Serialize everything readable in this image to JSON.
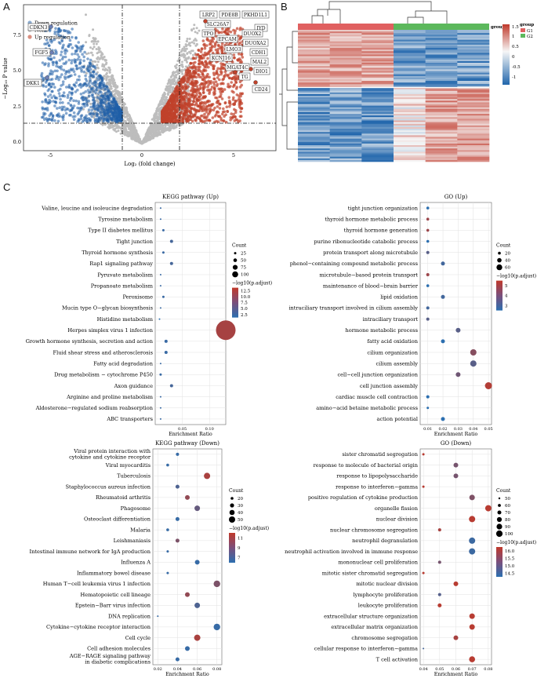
{
  "panel_letters": {
    "a": "A",
    "b": "B",
    "c": "C"
  },
  "colors": {
    "down": "#1f5fa8",
    "up": "#c0422b",
    "ns": "#bdbdbd",
    "low": "#2c6fb0",
    "high": "#c0392b",
    "hm_g1": "#e06060",
    "hm_g2": "#5cb85c"
  },
  "volcano": {
    "xlabel": "Log₂ (fold change)",
    "ylabel": "−Log₁₀ P value",
    "legend": [
      "Down regulation",
      "None",
      "Up regulation"
    ],
    "x_ticks": [
      "-5",
      "0",
      "5"
    ],
    "y_ticks": [
      "0.0",
      "2.5",
      "5.0",
      "7.5"
    ],
    "labels_left": [
      "CDKN3",
      "FGF5",
      "DKK1"
    ],
    "labels_right": [
      "LRP2",
      "PDE8B",
      "PKHD1L1",
      "SLC26A7",
      "IYD",
      "TPO",
      "DUOX2",
      "EPCAM",
      "DUOXA2",
      "LMO3",
      "CDH1",
      "KCNJ16",
      "MAL2",
      "MGAT4C",
      "DIO1",
      "TG",
      "CD24"
    ]
  },
  "heatmap": {
    "legend_values": [
      "1.5",
      "1",
      "0.5",
      "0",
      "-0.5",
      "-1"
    ],
    "group_title": "group",
    "groups": [
      "G1",
      "G2"
    ]
  },
  "chart_data": [
    {
      "type": "scatter",
      "title": "KEGG pathway (Up)",
      "xlabel": "Enrichment Ratio",
      "x_ticks": [
        "0.05",
        "0.10"
      ],
      "terms": [
        "Valine, leucine and isoleucine degradation",
        "Tyrosine metabolism",
        "Type II diabetes mellitus",
        "Tight junction",
        "Thyroid hormone synthesis",
        "Rap1 signaling pathway",
        "Pyruvate metabolism",
        "Propanoate metabolism",
        "Peroxisome",
        "Mucin type O−glycan biosynthesis",
        "Histidine metabolism",
        "Herpes simplex virus 1 infection",
        "Growth hormone synthesis, secretion and action",
        "Fluid shear stress and atherosclerosis",
        "Fatty acid degradation",
        "Drug metabolism − cytochrome P450",
        "Axon guidance",
        "Arginine and proline metabolism",
        "Aldosterone−regulated sodium reabsorption",
        "ABC transporters"
      ],
      "count_title": "Count",
      "count_legend": [
        "25",
        "50",
        "75",
        "100"
      ],
      "color_title": "−log10(p.adjust)",
      "color_ticks": [
        "12.5",
        "10.0",
        "7.5",
        "5.0",
        "2.5"
      ]
    },
    {
      "type": "scatter",
      "title": "GO (Up)",
      "xlabel": "Enrichment Ratio",
      "x_ticks": [
        "0.01",
        "0.02",
        "0.03",
        "0.04",
        "0.05"
      ],
      "terms": [
        "tight junction organization",
        "thyroid hormone metabolic process",
        "thyroid hormone generation",
        "purine ribonucleotide catabolic process",
        "protein transport along microtubule",
        "phenol−containing compound metabolic process",
        "microtubule−based protein transport",
        "maintenance of blood−brain barrier",
        "lipid oxidation",
        "intraciliary transport involved in cilium assembly",
        "intraciliary transport",
        "hormone metabolic process",
        "fatty acid oxidation",
        "cilium organization",
        "cilium assembly",
        "cell−cell junction organization",
        "cell junction assembly",
        "cardiac muscle cell contraction",
        "amino−acid betaine metabolic process",
        "action potential"
      ],
      "count_title": "Count",
      "count_legend": [
        "20",
        "40",
        "60"
      ],
      "color_title": "−log10(p.adjust)",
      "color_ticks": [
        "5",
        "4",
        "3"
      ]
    },
    {
      "type": "scatter",
      "title": "KEGG pathway (Down)",
      "xlabel": "Enrichment Ratio",
      "x_ticks": [
        "0.02",
        "0.04",
        "0.06",
        "0.08"
      ],
      "terms": [
        "Viral protein interaction with cytokine and cytokine receptor",
        "Viral myocarditis",
        "Tuberculosis",
        "Staphylococcus aureus infection",
        "Rheumatoid arthritis",
        "Phagosome",
        "Osteoclast differentiation",
        "Malaria",
        "Leishmaniasis",
        "Intestinal immune network for IgA production",
        "Influenza A",
        "Inflammatory bowel disease",
        "Human T−cell leukemia virus 1 infection",
        "Hematopoietic cell lineage",
        "Epstein−Barr virus infection",
        "DNA replication",
        "Cytokine−cytokine receptor interaction",
        "Cell cycle",
        "Cell adhesion molecules",
        "AGE−RAGE signaling pathway in diabetic complications"
      ],
      "count_title": "Count",
      "count_legend": [
        "20",
        "30",
        "40",
        "50"
      ],
      "color_title": "−log10(p.adjust)",
      "color_ticks": [
        "11",
        "9",
        "7"
      ]
    },
    {
      "type": "scatter",
      "title": "GO (Down)",
      "xlabel": "Enrichment Ratio",
      "x_ticks": [
        "0.04",
        "0.05",
        "0.06",
        "0.07",
        "0.08"
      ],
      "terms": [
        "sister chromatid segregation",
        "response to molecule of bacterial origin",
        "response to lipopolysaccharide",
        "response to interferon−gamma",
        "positive regulation of cytokine production",
        "organelle fission",
        "nuclear division",
        "nuclear chromosome segregation",
        "neutrophil degranulation",
        "neutrophil activation involved in immune response",
        "mononuclear cell proliferation",
        "mitotic sister chromatid segregation",
        "mitotic nuclear division",
        "lymphocyte proliferation",
        "leukocyte proliferation",
        "extracellular structure organization",
        "extracellular matrix organization",
        "chromosome segregation",
        "cellular response to interferon−gamma",
        "T cell activation"
      ],
      "count_title": "Count",
      "count_legend": [
        "50",
        "60",
        "70",
        "80",
        "90",
        "100"
      ],
      "color_title": "−log10(p.adjust)",
      "color_ticks": [
        "16.0",
        "15.5",
        "15.0",
        "14.5"
      ]
    }
  ]
}
